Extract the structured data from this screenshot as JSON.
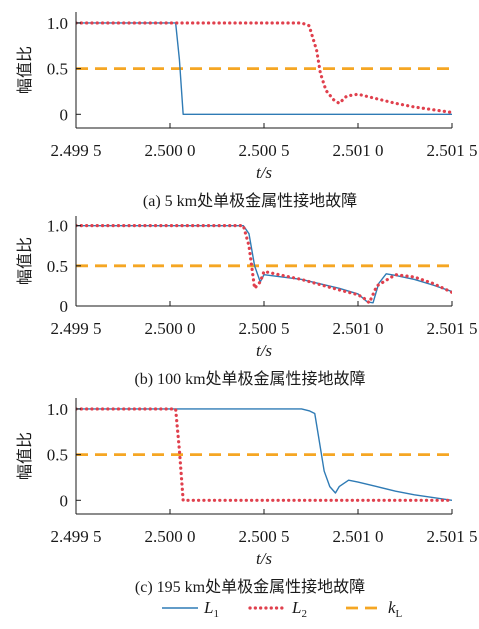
{
  "chart_data": [
    {
      "type": "line",
      "caption": "(a)  5 km处单极金属性接地故障",
      "xlabel": "t/s",
      "ylabel": "幅值比",
      "xlim": [
        2.4995,
        2.5015
      ],
      "ylim": [
        -0.15,
        1.12
      ],
      "xticks": [
        2.4995,
        2.5,
        2.5005,
        2.501,
        2.5015
      ],
      "xtick_labels": [
        "2.499 5",
        "2.500 0",
        "2.500 5",
        "2.501 0",
        "2.501 5"
      ],
      "yticks": [
        0,
        0.5,
        1.0
      ],
      "ytick_labels": [
        "0",
        "0.5",
        "1.0"
      ],
      "series": [
        {
          "key": "L1",
          "name": "L1",
          "x": [
            2.4995,
            2.50003,
            2.50005,
            2.50007,
            2.5015
          ],
          "y": [
            1.0,
            1.0,
            0.6,
            0.0,
            0.0
          ]
        },
        {
          "key": "L2",
          "name": "L2",
          "x": [
            2.4995,
            2.5007,
            2.50074,
            2.50078,
            2.5008,
            2.50083,
            2.50087,
            2.5009,
            2.50094,
            2.501,
            2.5011,
            2.5012,
            2.5013,
            2.5014,
            2.5015
          ],
          "y": [
            1.0,
            1.0,
            0.97,
            0.7,
            0.45,
            0.26,
            0.16,
            0.12,
            0.2,
            0.22,
            0.17,
            0.12,
            0.08,
            0.05,
            0.02
          ]
        },
        {
          "key": "kL",
          "name": "kL",
          "x": [
            2.4995,
            2.5015
          ],
          "y": [
            0.5,
            0.5
          ]
        }
      ]
    },
    {
      "type": "line",
      "caption": "(b)  100 km处单极金属性接地故障",
      "xlabel": "t/s",
      "ylabel": "幅值比",
      "xlim": [
        2.4995,
        2.5015
      ],
      "ylim": [
        0.0,
        1.12
      ],
      "xticks": [
        2.4995,
        2.5,
        2.5005,
        2.501,
        2.5015
      ],
      "xtick_labels": [
        "2.499 5",
        "2.500 0",
        "2.500 5",
        "2.501 0",
        "2.501 5"
      ],
      "yticks": [
        0,
        0.5,
        1.0
      ],
      "ytick_labels": [
        "0",
        "0.5",
        "1.0"
      ],
      "series": [
        {
          "key": "L1",
          "name": "L1",
          "x": [
            2.4995,
            2.50039,
            2.50042,
            2.50045,
            2.50048,
            2.5005,
            2.5007,
            2.5009,
            2.501,
            2.50105,
            2.50108,
            2.50111,
            2.50115,
            2.5012,
            2.5013,
            2.5014,
            2.5015
          ],
          "y": [
            1.0,
            1.0,
            0.9,
            0.5,
            0.3,
            0.39,
            0.33,
            0.22,
            0.15,
            0.05,
            0.04,
            0.28,
            0.4,
            0.38,
            0.33,
            0.26,
            0.18
          ]
        },
        {
          "key": "L2",
          "name": "L2",
          "x": [
            2.4995,
            2.50039,
            2.50042,
            2.50045,
            2.50048,
            2.5005,
            2.5007,
            2.5009,
            2.501,
            2.50103,
            2.50106,
            2.5011,
            2.5012,
            2.5013,
            2.5014,
            2.5015
          ],
          "y": [
            1.0,
            1.0,
            0.75,
            0.22,
            0.3,
            0.43,
            0.33,
            0.2,
            0.14,
            0.1,
            0.04,
            0.25,
            0.39,
            0.36,
            0.28,
            0.17
          ]
        },
        {
          "key": "kL",
          "name": "kL",
          "x": [
            2.4995,
            2.5015
          ],
          "y": [
            0.5,
            0.5
          ]
        }
      ]
    },
    {
      "type": "line",
      "caption": "(c)  195 km处单极金属性接地故障",
      "xlabel": "t/s",
      "ylabel": "幅值比",
      "xlim": [
        2.4995,
        2.5015
      ],
      "ylim": [
        -0.15,
        1.12
      ],
      "xticks": [
        2.4995,
        2.5,
        2.5005,
        2.501,
        2.5015
      ],
      "xtick_labels": [
        "2.499 5",
        "2.500 0",
        "2.500 5",
        "2.501 0",
        "2.501 5"
      ],
      "yticks": [
        0,
        0.5,
        1.0
      ],
      "ytick_labels": [
        "0",
        "0.5",
        "1.0"
      ],
      "series": [
        {
          "key": "L1",
          "name": "L1",
          "x": [
            2.4995,
            2.5007,
            2.50074,
            2.50077,
            2.50079,
            2.50082,
            2.50085,
            2.50088,
            2.5009,
            2.50095,
            2.501,
            2.5011,
            2.5012,
            2.5013,
            2.5014,
            2.5015
          ],
          "y": [
            1.0,
            1.0,
            0.98,
            0.95,
            0.7,
            0.32,
            0.15,
            0.08,
            0.15,
            0.22,
            0.2,
            0.15,
            0.1,
            0.06,
            0.03,
            0.0
          ]
        },
        {
          "key": "L2",
          "name": "L2",
          "x": [
            2.4995,
            2.50003,
            2.50005,
            2.50007,
            2.5015
          ],
          "y": [
            1.0,
            1.0,
            0.55,
            0.0,
            0.0
          ]
        },
        {
          "key": "kL",
          "name": "kL",
          "x": [
            2.4995,
            2.5015
          ],
          "y": [
            0.5,
            0.5
          ]
        }
      ]
    }
  ],
  "legend": [
    {
      "key": "L1",
      "label": "L",
      "sub": "1"
    },
    {
      "key": "L2",
      "label": "L",
      "sub": "2"
    },
    {
      "key": "kL",
      "label": "k",
      "sub": "L"
    }
  ],
  "colors": {
    "L1": "#2f7bb5",
    "L2": "#e0404d",
    "kL": "#f5a623",
    "axis": "#1a1a1a"
  }
}
